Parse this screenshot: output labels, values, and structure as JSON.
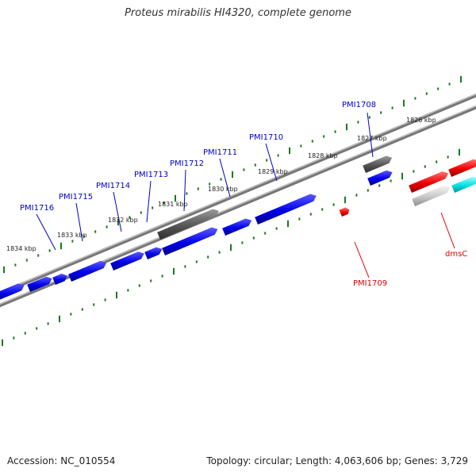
{
  "title": "Proteus mirabilis HI4320, complete genome",
  "footer": {
    "accession": "Accession: NC_010554",
    "topology": "Topology: circular; Length: 4,063,606 bp; Genes: 3,729"
  },
  "colors": {
    "forward_gene": "#0000ee",
    "reverse_gene": "#ee0000",
    "pseudo_gene": "#555555",
    "rna_gene": "#00dddd",
    "backbone": "#777777",
    "tick": "#1a7a1a",
    "forward_label": "#0000cc",
    "reverse_label": "#dd0000"
  },
  "scale_labels": [
    "1826 kbp",
    "1827 kbp",
    "1828 kbp",
    "1829 kbp",
    "1830 kbp",
    "1831 kbp",
    "1832 kbp",
    "1833 kbp",
    "1834 kbp"
  ],
  "gene_labels": [
    {
      "text": "PMI1708",
      "strand": "forward"
    },
    {
      "text": "PMI1710",
      "strand": "forward"
    },
    {
      "text": "PMI1711",
      "strand": "forward"
    },
    {
      "text": "PMI1712",
      "strand": "forward"
    },
    {
      "text": "PMI1713",
      "strand": "forward"
    },
    {
      "text": "PMI1714",
      "strand": "forward"
    },
    {
      "text": "PMI1715",
      "strand": "forward"
    },
    {
      "text": "PMI1716",
      "strand": "forward"
    },
    {
      "text": "PMI1709",
      "strand": "reverse"
    },
    {
      "text": "dmsC",
      "strand": "reverse"
    }
  ]
}
